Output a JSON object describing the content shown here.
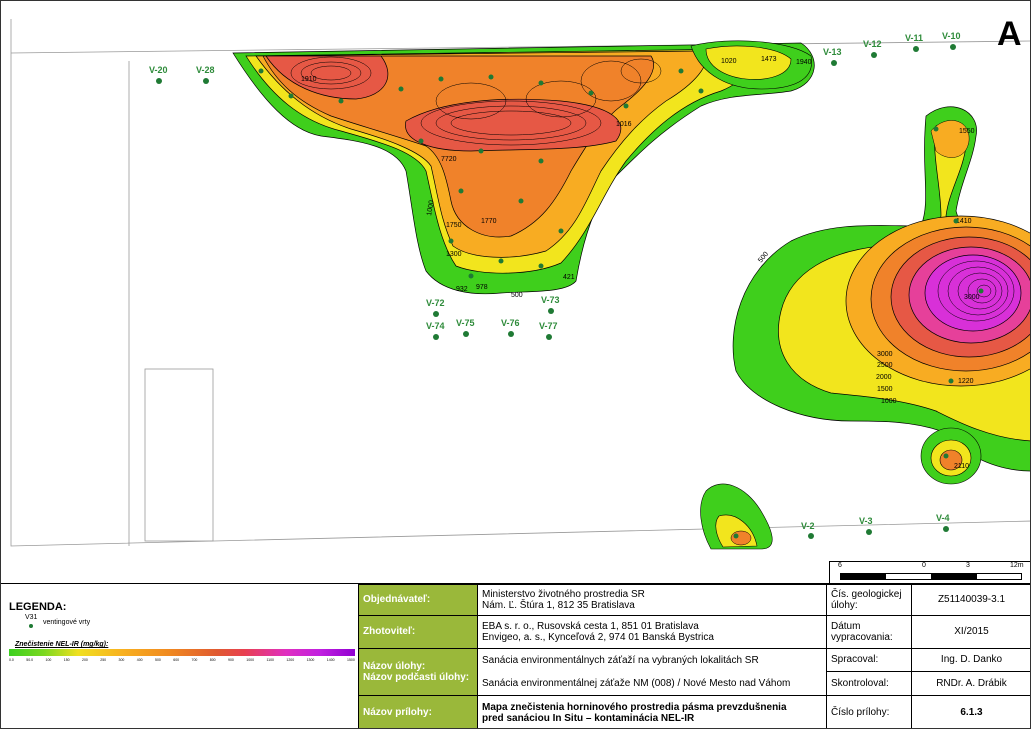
{
  "north_arrow": "A",
  "scale": {
    "ticks": [
      "6",
      "0",
      "3",
      "12m"
    ]
  },
  "wells": [
    {
      "label": "V-20",
      "mark": "0"
    },
    {
      "label": "V-28",
      "mark": "0"
    },
    {
      "label": "V-13",
      "mark": "0"
    },
    {
      "label": "V-12",
      "mark": "0"
    },
    {
      "label": "V-11",
      "mark": "0"
    },
    {
      "label": "V-10",
      "mark": "0"
    },
    {
      "label": "V-72",
      "mark": "0"
    },
    {
      "label": "V-73",
      "mark": "0"
    },
    {
      "label": "V-74",
      "mark": "0"
    },
    {
      "label": "V-75",
      "mark": "0"
    },
    {
      "label": "V-76",
      "mark": "0"
    },
    {
      "label": "V-77",
      "mark": "0"
    },
    {
      "label": "V-2",
      "mark": "0"
    },
    {
      "label": "V-3",
      "mark": "0"
    },
    {
      "label": "V-4",
      "mark": "0"
    }
  ],
  "contour_labels": [
    "1550",
    "1410",
    "500",
    "1000",
    "1500",
    "2000",
    "2500",
    "3000",
    "3000",
    "1220",
    "2110",
    "1000",
    "1300",
    "1750",
    "1770",
    "978",
    "500",
    "421",
    "932",
    "1910",
    "1020",
    "1473",
    "1940",
    "1016",
    "7720"
  ],
  "legend": {
    "title": "LEGENDA:",
    "well_code": "V31",
    "well_text": "ventingové vrty",
    "scale_title": "Znečistenie NEL-IR (mg/kg):",
    "scale_ticks": [
      "0.0",
      "50.0",
      "100",
      "150",
      "200",
      "250",
      "300",
      "400",
      "500",
      "600",
      "700",
      "800",
      "900",
      "1000",
      "1100",
      "1200",
      "1300",
      "1400",
      "1500"
    ]
  },
  "title_block": {
    "client_label": "Objednávateľ:",
    "client_value": "Ministerstvo životného prostredia SR\nNám. Ľ. Štúra 1, 812 35 Bratislava",
    "contractor_label": "Zhotoviteľ:",
    "contractor_value": "EBA s. r. o., Rusovská cesta 1, 851 01 Bratislava\nEnvigeo, a. s., Kynceľová 2, 974 01 Banská Bystrica",
    "task_label": "Názov úlohy:",
    "task_value": "Sanácia environmentálnych záťaží na vybraných lokalitách SR",
    "subtask_label": "Názov podčasti úlohy:",
    "subtask_value": "Sanácia environmentálnej záťaže NM (008) / Nové Mesto nad Váhom",
    "appendix_label": "Názov prílohy:",
    "appendix_value": "Mapa znečistenia horninového prostredia pásma prevzdušnenia\npred sanáciou In Situ – kontaminácia NEL-IR",
    "geo_task_no_label": "Čís. geologickej úlohy:",
    "geo_task_no_value": "Z51140039-3.1",
    "date_label": "Dátum vypracovania:",
    "date_value": "XI/2015",
    "prepared_label": "Spracoval:",
    "prepared_value": "Ing. D. Danko",
    "checked_label": "Skontroloval:",
    "checked_value": "RNDr. A. Drábik",
    "appendix_no_label": "Číslo prílohy:",
    "appendix_no_value": "6.1.3"
  }
}
